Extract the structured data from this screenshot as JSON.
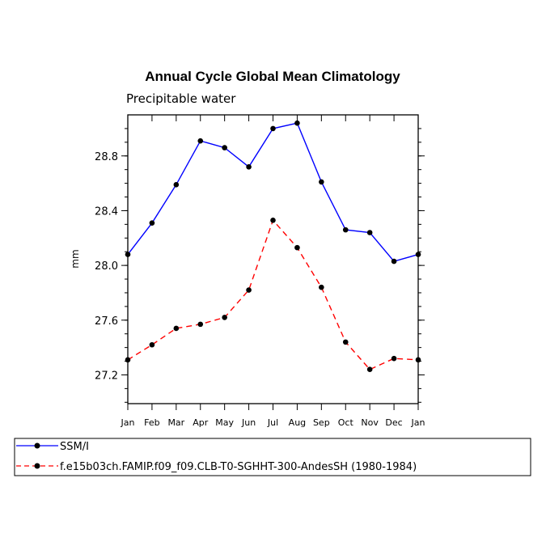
{
  "chart_data": {
    "type": "line",
    "title": "Annual Cycle Global Mean Climatology",
    "subtitle": "Precipitable water",
    "ylabel": "mm",
    "xlabel": "",
    "categories": [
      "Jan",
      "Feb",
      "Mar",
      "Apr",
      "May",
      "Jun",
      "Jul",
      "Aug",
      "Sep",
      "Oct",
      "Nov",
      "Dec",
      "Jan"
    ],
    "ylim": [
      26.99,
      29.1
    ],
    "yticks": [
      27.2,
      27.6,
      28.0,
      28.4,
      28.8
    ],
    "ytick_labels": [
      "27.2",
      "27.6",
      "28.0",
      "28.4",
      "28.8"
    ],
    "y_minor_step": 0.1,
    "grid": false,
    "legend_position": "bottom-left, below plot",
    "series": [
      {
        "name": "SSM/I",
        "color": "#0000ff",
        "style": "solid",
        "marker": "dot",
        "values": [
          28.08,
          28.31,
          28.59,
          28.91,
          28.86,
          28.72,
          29.0,
          29.04,
          28.61,
          28.26,
          28.24,
          28.03,
          28.08
        ]
      },
      {
        "name": "f.e15b03ch.FAMIP.f09_f09.CLB-T0-SGHHT-300-AndesSH (1980-1984)",
        "color": "#ff0000",
        "style": "dashed",
        "marker": "dot",
        "values": [
          27.31,
          27.42,
          27.54,
          27.57,
          27.62,
          27.82,
          28.33,
          28.13,
          27.84,
          27.44,
          27.24,
          27.32,
          27.31
        ]
      }
    ]
  }
}
